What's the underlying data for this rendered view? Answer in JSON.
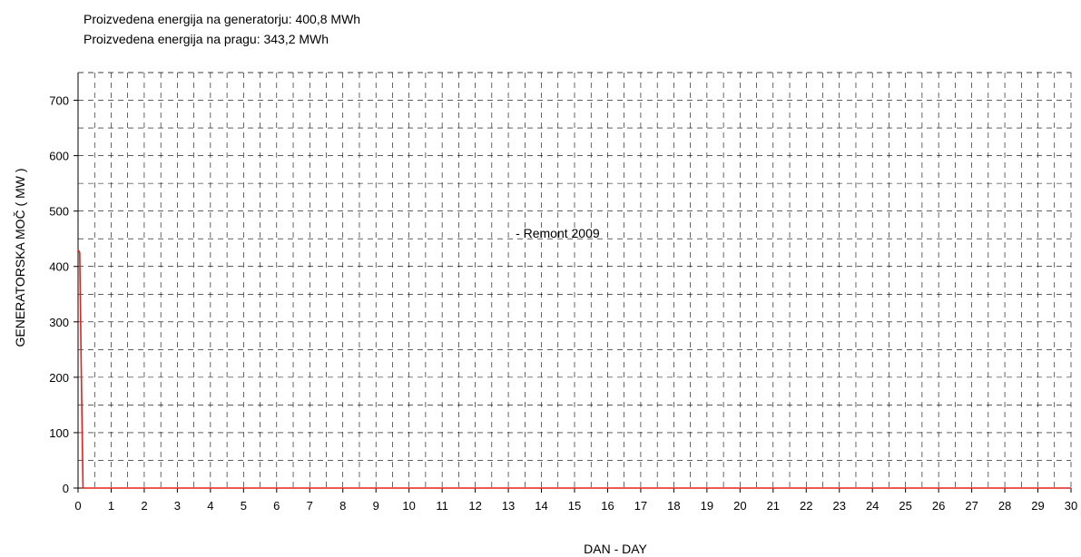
{
  "header": {
    "line1": "Proizvedena energija na generatorju: 400,8 MWh",
    "line2": "Proizvedena energija na pragu: 343,2 MWh"
  },
  "chart_data": {
    "type": "line",
    "title": "",
    "xlabel": "DAN - DAY",
    "ylabel": "GENERATORSKA MOČ  ( MW )",
    "xlim": [
      0,
      30
    ],
    "ylim": [
      0,
      750
    ],
    "xticks": [
      0,
      1,
      2,
      3,
      4,
      5,
      6,
      7,
      8,
      9,
      10,
      11,
      12,
      13,
      14,
      15,
      16,
      17,
      18,
      19,
      20,
      21,
      22,
      23,
      24,
      25,
      26,
      27,
      28,
      29,
      30
    ],
    "yticks": [
      0,
      100,
      200,
      300,
      400,
      500,
      600,
      700
    ],
    "grid": true,
    "line_color": "#e8201a",
    "annotation": {
      "text": "- Remont 2009",
      "x": 13.0,
      "y": 460
    },
    "series": [
      {
        "x": [
          0,
          0.05,
          0.1,
          0.15,
          0.2,
          1,
          5,
          10,
          15,
          20,
          25,
          30
        ],
        "y": [
          430,
          425,
          200,
          0,
          0,
          0,
          0,
          0,
          0,
          0,
          0,
          0
        ]
      }
    ]
  }
}
